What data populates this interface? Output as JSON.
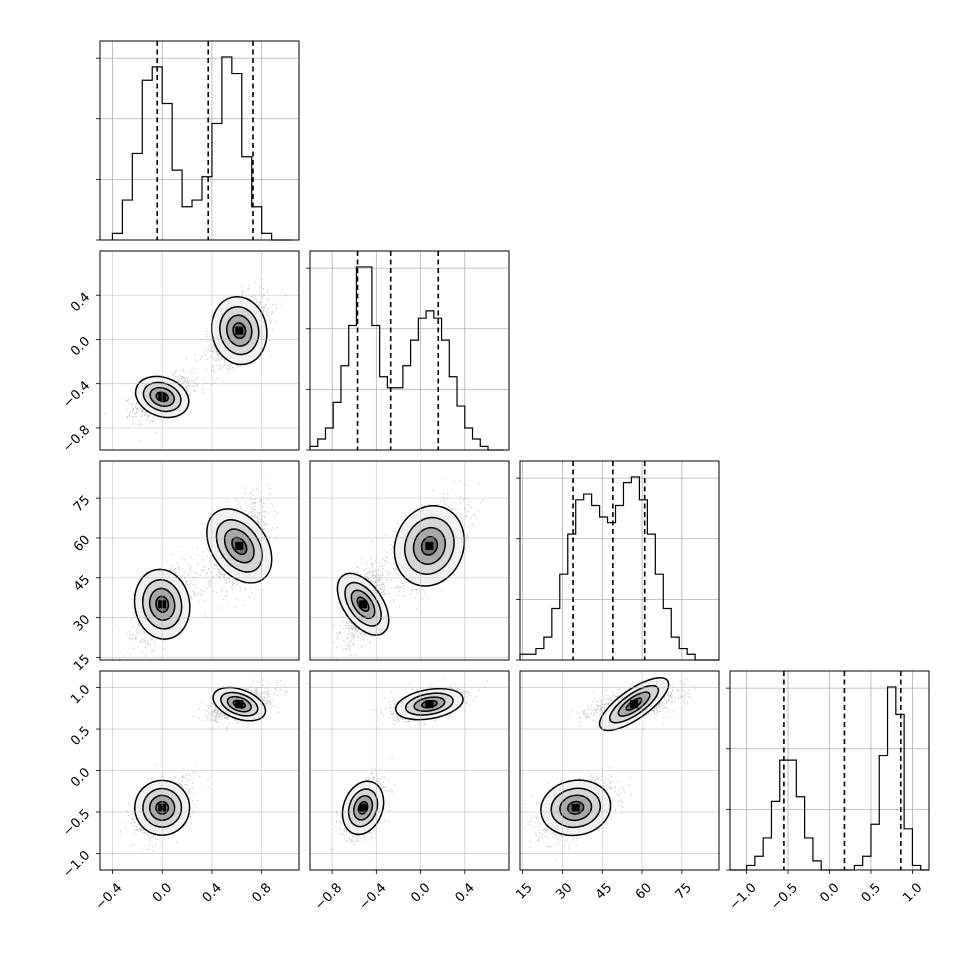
{
  "chart_data": {
    "type": "corner",
    "title": "",
    "parameters": [
      {
        "ticks": [
          -0.4,
          0.0,
          0.4,
          0.8
        ],
        "tick_labels": [
          "−0.4",
          "0.0",
          "0.4",
          "0.8"
        ],
        "range": [
          -0.5,
          1.1
        ]
      },
      {
        "ticks": [
          -0.8,
          -0.4,
          0.0,
          0.4
        ],
        "tick_labels": [
          "−0.8",
          "−0.4",
          "0.0",
          "0.4"
        ],
        "range": [
          -1.0,
          0.8
        ]
      },
      {
        "ticks": [
          15,
          30,
          45,
          60,
          75
        ],
        "tick_labels": [
          "15",
          "30",
          "45",
          "60",
          "75"
        ],
        "range": [
          14,
          89
        ]
      },
      {
        "ticks": [
          -1.0,
          -0.5,
          0.0,
          0.5,
          1.0
        ],
        "tick_labels": [
          "−1.0",
          "−0.5",
          "0.0",
          "0.5",
          "1.0"
        ],
        "range": [
          -1.2,
          1.2
        ]
      }
    ],
    "histograms": [
      {
        "param": 0,
        "bin_edges": [
          -0.4,
          -0.32,
          -0.24,
          -0.16,
          -0.08,
          0.0,
          0.08,
          0.16,
          0.24,
          0.32,
          0.4,
          0.48,
          0.56,
          0.64,
          0.72,
          0.8,
          0.88,
          0.96,
          1.04
        ],
        "counts": [
          2,
          12,
          26,
          48,
          52,
          41,
          21,
          10,
          12,
          19,
          35,
          55,
          50,
          25,
          10,
          2,
          0,
          0
        ],
        "quantiles": [
          -0.04,
          0.37,
          0.73
        ]
      },
      {
        "param": 1,
        "bin_edges": [
          -1.0,
          -0.93,
          -0.86,
          -0.79,
          -0.72,
          -0.65,
          -0.58,
          -0.51,
          -0.44,
          -0.37,
          -0.3,
          -0.23,
          -0.16,
          -0.09,
          -0.02,
          0.05,
          0.12,
          0.19,
          0.26,
          0.33,
          0.4,
          0.47,
          0.54,
          0.61,
          0.68,
          0.75
        ],
        "counts": [
          1,
          3,
          6,
          13,
          23,
          34,
          50,
          50,
          34,
          20,
          17,
          17,
          23,
          30,
          36,
          38,
          36,
          30,
          20,
          12,
          6,
          3,
          1,
          0,
          0
        ],
        "quantiles": [
          -0.57,
          -0.27,
          0.16
        ]
      },
      {
        "param": 2,
        "bin_edges": [
          14,
          17,
          20,
          23,
          26,
          29,
          32,
          35,
          38,
          41,
          44,
          47,
          50,
          53,
          56,
          59,
          62,
          65,
          68,
          71,
          74,
          77,
          80,
          83,
          86,
          89
        ],
        "counts": [
          1,
          1,
          2,
          4,
          9,
          15,
          22,
          28,
          29,
          27,
          25,
          24,
          27,
          31,
          32,
          28,
          22,
          15,
          9,
          4,
          2,
          1,
          0,
          0,
          0
        ],
        "quantiles": [
          34,
          49,
          61
        ]
      },
      {
        "param": 3,
        "bin_edges": [
          -1.2,
          -1.1,
          -1.0,
          -0.9,
          -0.8,
          -0.7,
          -0.6,
          -0.5,
          -0.4,
          -0.3,
          -0.2,
          -0.1,
          0.0,
          0.1,
          0.2,
          0.3,
          0.4,
          0.5,
          0.6,
          0.7,
          0.8,
          0.9,
          1.0,
          1.1,
          1.2
        ],
        "counts": [
          0,
          0,
          1,
          3,
          7,
          15,
          24,
          24,
          16,
          7,
          2,
          0,
          0,
          0,
          0,
          1,
          3,
          10,
          25,
          40,
          34,
          9,
          1,
          0
        ],
        "quantiles": [
          -0.55,
          0.18,
          0.86
        ]
      }
    ],
    "clusters": [
      {
        "mean": [
          0.0,
          -0.52,
          35,
          -0.45
        ],
        "std": [
          0.1,
          0.08,
          6,
          0.15
        ],
        "weight": 0.5
      },
      {
        "mean": [
          0.62,
          0.08,
          57,
          0.8
        ],
        "std": [
          0.1,
          0.14,
          7,
          0.08
        ],
        "weight": 0.5
      }
    ]
  }
}
